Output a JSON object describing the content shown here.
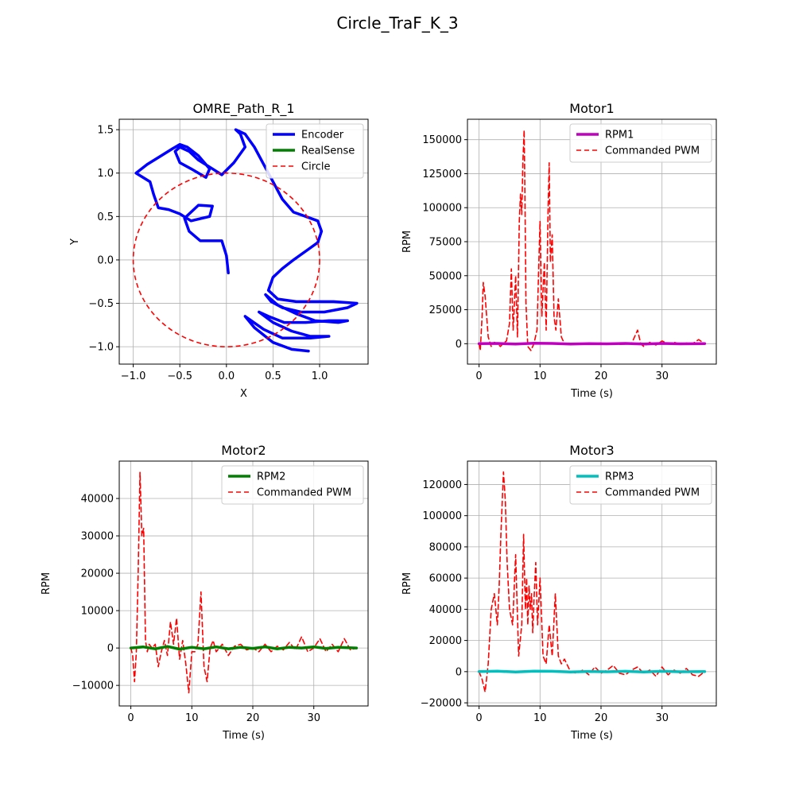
{
  "figure": {
    "title": "Circle_TraF_K_3"
  },
  "chart_data": [
    {
      "type": "line",
      "title": "OMRE_Path_R_1",
      "xlabel": "X",
      "ylabel": "Y",
      "xlim": [
        -1.15,
        1.52
      ],
      "ylim": [
        -1.2,
        1.62
      ],
      "xticks": [
        -1.0,
        -0.5,
        0.0,
        0.5,
        1.0
      ],
      "xtick_labels": [
        "−1.0",
        "−0.5",
        "0.0",
        "0.5",
        "1.0"
      ],
      "yticks": [
        -1.0,
        -0.5,
        0.0,
        0.5,
        1.0,
        1.5
      ],
      "ytick_labels": [
        "−1.0",
        "−0.5",
        "0.0",
        "0.5",
        "1.0",
        "1.5"
      ],
      "grid": true,
      "legend": "upper-right",
      "series": [
        {
          "name": "Encoder",
          "color": "#0000ff",
          "width": 3.5,
          "dash": "",
          "points": [
            [
              0.02,
              -0.15
            ],
            [
              0.0,
              0.05
            ],
            [
              -0.05,
              0.22
            ],
            [
              -0.28,
              0.22
            ],
            [
              -0.4,
              0.33
            ],
            [
              -0.45,
              0.48
            ],
            [
              -0.3,
              0.63
            ],
            [
              -0.15,
              0.62
            ],
            [
              -0.18,
              0.5
            ],
            [
              -0.38,
              0.45
            ],
            [
              -0.5,
              0.53
            ],
            [
              -0.62,
              0.58
            ],
            [
              -0.73,
              0.6
            ],
            [
              -0.78,
              0.75
            ],
            [
              -0.82,
              0.9
            ],
            [
              -0.97,
              1.0
            ],
            [
              -0.85,
              1.1
            ],
            [
              -0.7,
              1.2
            ],
            [
              -0.58,
              1.28
            ],
            [
              -0.5,
              1.33
            ],
            [
              -0.42,
              1.3
            ],
            [
              -0.3,
              1.2
            ],
            [
              -0.18,
              1.05
            ],
            [
              -0.22,
              0.95
            ],
            [
              -0.38,
              1.05
            ],
            [
              -0.5,
              1.12
            ],
            [
              -0.55,
              1.25
            ],
            [
              -0.5,
              1.3
            ],
            [
              -0.4,
              1.25
            ],
            [
              -0.3,
              1.15
            ],
            [
              -0.15,
              1.05
            ],
            [
              -0.05,
              0.98
            ],
            [
              0.08,
              1.12
            ],
            [
              0.2,
              1.3
            ],
            [
              0.15,
              1.45
            ],
            [
              0.1,
              1.5
            ],
            [
              0.2,
              1.45
            ],
            [
              0.3,
              1.3
            ],
            [
              0.4,
              1.1
            ],
            [
              0.5,
              0.9
            ],
            [
              0.6,
              0.7
            ],
            [
              0.72,
              0.55
            ],
            [
              0.85,
              0.5
            ],
            [
              0.98,
              0.45
            ],
            [
              1.02,
              0.33
            ],
            [
              0.98,
              0.2
            ],
            [
              0.85,
              0.1
            ],
            [
              0.72,
              0.0
            ],
            [
              0.6,
              -0.1
            ],
            [
              0.5,
              -0.2
            ],
            [
              0.45,
              -0.35
            ],
            [
              0.55,
              -0.45
            ],
            [
              0.75,
              -0.48
            ],
            [
              0.95,
              -0.48
            ],
            [
              1.15,
              -0.48
            ],
            [
              1.4,
              -0.5
            ],
            [
              1.3,
              -0.55
            ],
            [
              1.05,
              -0.6
            ],
            [
              0.8,
              -0.6
            ],
            [
              0.6,
              -0.55
            ],
            [
              0.48,
              -0.48
            ],
            [
              0.42,
              -0.4
            ],
            [
              0.55,
              -0.52
            ],
            [
              0.75,
              -0.62
            ],
            [
              0.95,
              -0.7
            ],
            [
              1.2,
              -0.72
            ],
            [
              1.3,
              -0.7
            ],
            [
              1.1,
              -0.7
            ],
            [
              0.85,
              -0.72
            ],
            [
              0.62,
              -0.72
            ],
            [
              0.45,
              -0.65
            ],
            [
              0.35,
              -0.6
            ],
            [
              0.5,
              -0.72
            ],
            [
              0.7,
              -0.82
            ],
            [
              0.9,
              -0.88
            ],
            [
              1.1,
              -0.88
            ],
            [
              0.9,
              -0.9
            ],
            [
              0.6,
              -0.9
            ],
            [
              0.4,
              -0.8
            ],
            [
              0.2,
              -0.65
            ],
            [
              0.3,
              -0.78
            ],
            [
              0.5,
              -0.95
            ],
            [
              0.7,
              -1.03
            ],
            [
              0.88,
              -1.05
            ]
          ]
        },
        {
          "name": "RealSense",
          "color": "#008000",
          "width": 3.5,
          "dash": "",
          "points": []
        },
        {
          "name": "Circle",
          "color": "#ff0000",
          "width": 1.6,
          "dash": "6,4",
          "circle": {
            "cx": 0,
            "cy": 0,
            "r": 1
          }
        }
      ]
    },
    {
      "type": "line",
      "title": "Motor1",
      "xlabel": "Time (s)",
      "ylabel": "RPM",
      "xlim": [
        -1.9,
        38.9
      ],
      "ylim": [
        -15000,
        165000
      ],
      "xticks": [
        0,
        10,
        20,
        30
      ],
      "xtick_labels": [
        "0",
        "10",
        "20",
        "30"
      ],
      "yticks": [
        0,
        25000,
        50000,
        75000,
        100000,
        125000,
        150000
      ],
      "ytick_labels": [
        "0",
        "25000",
        "50000",
        "75000",
        "100000",
        "125000",
        "150000"
      ],
      "grid": true,
      "legend": "upper-right",
      "series": [
        {
          "name": "RPM1",
          "color": "#bf00bf",
          "width": 3.5,
          "dash": "",
          "x": [
            0,
            3,
            6,
            9,
            12,
            15,
            18,
            21,
            24,
            27,
            30,
            33,
            37
          ],
          "y": [
            0,
            200,
            -300,
            300,
            200,
            -200,
            100,
            -100,
            200,
            -200,
            200,
            -100,
            0
          ]
        },
        {
          "name": "Commanded PWM",
          "color": "#ff0000",
          "width": 1.6,
          "dash": "6,4",
          "x": [
            0,
            0.2,
            0.5,
            0.7,
            1.0,
            1.5,
            2.0,
            2.5,
            3.0,
            3.5,
            4.0,
            4.5,
            5.0,
            5.3,
            5.6,
            6.0,
            6.3,
            6.6,
            6.8,
            7.0,
            7.2,
            7.4,
            7.5,
            7.7,
            8.0,
            8.5,
            9.0,
            9.5,
            9.8,
            10.0,
            10.3,
            10.7,
            11.0,
            11.3,
            11.5,
            11.7,
            12.0,
            12.3,
            12.6,
            13.0,
            13.5,
            14.0,
            15,
            17,
            20,
            23,
            25,
            26,
            26.5,
            27,
            28,
            29,
            30,
            31,
            32,
            33,
            34,
            35,
            36,
            37
          ],
          "y": [
            0,
            -5000,
            20000,
            45000,
            35000,
            5000,
            -2000,
            1000,
            0,
            -2000,
            500,
            2000,
            15000,
            55000,
            10000,
            50000,
            5000,
            90000,
            110000,
            95000,
            135000,
            157000,
            120000,
            30000,
            -2000,
            -5000,
            0,
            10000,
            60000,
            90000,
            20000,
            60000,
            10000,
            95000,
            133000,
            60000,
            80000,
            20000,
            10000,
            33000,
            5000,
            0,
            500,
            -500,
            500,
            -500,
            0,
            10000,
            0,
            -2000,
            1000,
            -1000,
            2000,
            0,
            1000,
            -500,
            500,
            0,
            3000,
            0
          ]
        }
      ]
    },
    {
      "type": "line",
      "title": "Motor2",
      "xlabel": "Time (s)",
      "ylabel": "RPM",
      "xlim": [
        -1.9,
        38.9
      ],
      "ylim": [
        -15500,
        50000
      ],
      "xticks": [
        0,
        10,
        20,
        30
      ],
      "xtick_labels": [
        "0",
        "10",
        "20",
        "30"
      ],
      "yticks": [
        -10000,
        0,
        10000,
        20000,
        30000,
        40000
      ],
      "ytick_labels": [
        "−10000",
        "0",
        "10000",
        "20000",
        "30000",
        "40000"
      ],
      "grid": true,
      "legend": "upper-right",
      "series": [
        {
          "name": "RPM2",
          "color": "#008000",
          "width": 3.5,
          "dash": "",
          "x": [
            0,
            2,
            4,
            6,
            8,
            10,
            12,
            14,
            16,
            18,
            20,
            22,
            24,
            26,
            28,
            30,
            32,
            34,
            37
          ],
          "y": [
            0,
            300,
            -200,
            400,
            -300,
            200,
            -200,
            300,
            -200,
            200,
            -100,
            300,
            -200,
            200,
            0,
            300,
            -100,
            200,
            0
          ]
        },
        {
          "name": "Commanded PWM",
          "color": "#ff0000",
          "width": 1.6,
          "dash": "6,4",
          "x": [
            0,
            0.3,
            0.6,
            0.9,
            1.2,
            1.5,
            1.8,
            2.1,
            2.4,
            2.7,
            3.0,
            3.5,
            4.0,
            4.5,
            5.0,
            5.5,
            6.0,
            6.5,
            7.0,
            7.5,
            8.0,
            8.5,
            9.0,
            9.5,
            10.0,
            10.5,
            11.0,
            11.5,
            12.0,
            12.5,
            13.0,
            13.5,
            14.0,
            15,
            16,
            17,
            18,
            19,
            20,
            21,
            22,
            23,
            24,
            25,
            26,
            27,
            28,
            29,
            30,
            31,
            32,
            33,
            34,
            35,
            36,
            37
          ],
          "y": [
            0,
            -2000,
            -9000,
            -1000,
            20000,
            47000,
            30000,
            32000,
            2000,
            -1000,
            1000,
            0,
            1000,
            -5000,
            -1000,
            2000,
            -2000,
            7000,
            1000,
            8000,
            -3000,
            2000,
            -4000,
            -12000,
            -1000,
            -1000,
            1000,
            15000,
            -5000,
            -9000,
            0,
            2000,
            -1000,
            1000,
            -2000,
            500,
            1000,
            -500,
            0,
            -1000,
            1000,
            -1000,
            500,
            -500,
            1500,
            -500,
            3000,
            -1000,
            0,
            2500,
            -1000,
            1000,
            -1000,
            2500,
            -500,
            0
          ]
        }
      ]
    },
    {
      "type": "line",
      "title": "Motor3",
      "xlabel": "Time (s)",
      "ylabel": "RPM",
      "xlim": [
        -1.9,
        38.9
      ],
      "ylim": [
        -22000,
        135000
      ],
      "xticks": [
        0,
        10,
        20,
        30
      ],
      "xtick_labels": [
        "0",
        "10",
        "20",
        "30"
      ],
      "yticks": [
        -20000,
        0,
        20000,
        40000,
        60000,
        80000,
        100000,
        120000
      ],
      "ytick_labels": [
        "−20000",
        "0",
        "20000",
        "40000",
        "60000",
        "80000",
        "100000",
        "120000"
      ],
      "grid": true,
      "legend": "upper-right",
      "series": [
        {
          "name": "RPM3",
          "color": "#00bfbf",
          "width": 3.5,
          "dash": "",
          "x": [
            0,
            3,
            6,
            9,
            12,
            15,
            18,
            21,
            24,
            27,
            30,
            33,
            37
          ],
          "y": [
            0,
            300,
            -200,
            300,
            200,
            -200,
            100,
            -100,
            200,
            -200,
            200,
            -100,
            0
          ]
        },
        {
          "name": "Commanded PWM",
          "color": "#ff0000",
          "width": 1.6,
          "dash": "6,4",
          "x": [
            0,
            0.5,
            1.0,
            1.5,
            2.0,
            2.5,
            3.0,
            3.3,
            3.6,
            4.0,
            4.3,
            4.6,
            5.0,
            5.5,
            6.0,
            6.5,
            7.0,
            7.3,
            7.6,
            7.8,
            8.0,
            8.2,
            8.4,
            8.6,
            8.8,
            9.0,
            9.3,
            9.6,
            10.0,
            10.5,
            11.0,
            11.5,
            12.0,
            12.5,
            13.0,
            13.5,
            14.0,
            15,
            16,
            17,
            18,
            19,
            20,
            21,
            22,
            23,
            24,
            25,
            26,
            27,
            28,
            29,
            30,
            31,
            32,
            33,
            34,
            35,
            36,
            37
          ],
          "y": [
            0,
            -5000,
            -13000,
            5000,
            40000,
            50000,
            30000,
            55000,
            90000,
            128000,
            110000,
            70000,
            40000,
            30000,
            75000,
            10000,
            30000,
            88000,
            40000,
            60000,
            30000,
            55000,
            40000,
            50000,
            25000,
            45000,
            70000,
            30000,
            60000,
            10000,
            5000,
            30000,
            10000,
            50000,
            10000,
            5000,
            8000,
            0,
            -1000,
            1000,
            -2000,
            3000,
            -1000,
            1000,
            4000,
            -1000,
            -2000,
            1000,
            3000,
            -1000,
            1000,
            -3000,
            3000,
            -2000,
            1000,
            -1000,
            2000,
            -2000,
            -3000,
            0
          ]
        }
      ]
    }
  ]
}
